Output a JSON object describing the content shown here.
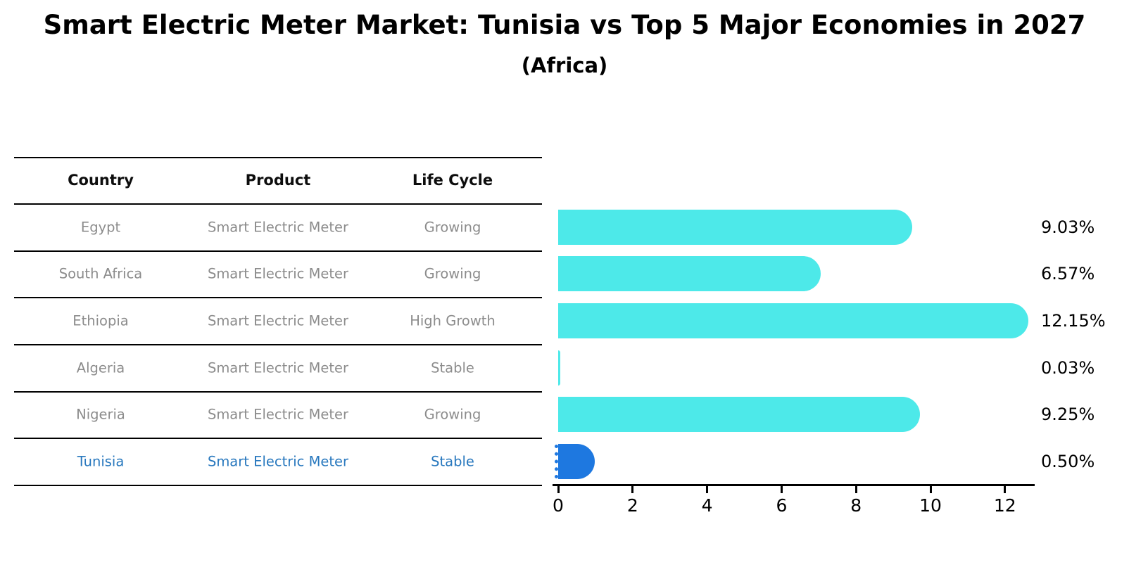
{
  "title": "Smart Electric Meter Market: Tunisia vs Top 5 Major Economies in 2027",
  "subtitle": "(Africa)",
  "table": {
    "columns": [
      "Country",
      "Product",
      "Life Cycle"
    ],
    "rows": [
      {
        "country": "Egypt",
        "product": "Smart Electric Meter",
        "life_cycle": "Growing",
        "highlighted": false
      },
      {
        "country": "South Africa",
        "product": "Smart Electric Meter",
        "life_cycle": "Growing",
        "highlighted": false
      },
      {
        "country": "Ethiopia",
        "product": "Smart Electric Meter",
        "life_cycle": "High Growth",
        "highlighted": false
      },
      {
        "country": "Algeria",
        "product": "Smart Electric Meter",
        "life_cycle": "Stable",
        "highlighted": false
      },
      {
        "country": "Nigeria",
        "product": "Smart Electric Meter",
        "life_cycle": "Growing",
        "highlighted": false
      },
      {
        "country": "Tunisia",
        "product": "Smart Electric Meter",
        "life_cycle": "Stable",
        "highlighted": true
      }
    ]
  },
  "chart_data": {
    "type": "bar",
    "orientation": "horizontal",
    "title": "Smart Electric Meter Market: Tunisia vs Top 5 Major Economies in 2027",
    "subtitle": "(Africa)",
    "categories": [
      "Egypt",
      "South Africa",
      "Ethiopia",
      "Algeria",
      "Nigeria",
      "Tunisia"
    ],
    "values": [
      9.03,
      6.57,
      12.15,
      0.03,
      9.25,
      0.5
    ],
    "value_labels": [
      "9.03%",
      "6.57%",
      "12.15%",
      "0.03%",
      "9.25%",
      "0.50%"
    ],
    "x_ticks": [
      0,
      2,
      4,
      6,
      8,
      10,
      12
    ],
    "xlim": [
      0,
      12.8
    ],
    "xlabel": "",
    "ylabel": "",
    "grid": false,
    "legend": "none",
    "highlight_category": "Tunisia",
    "bar_style": "rounded-right-cap, highlighted bar has dotted edge"
  },
  "colors": {
    "bar_default": "#4DE9E9",
    "bar_highlight": "#1E78E0",
    "row_text": "#8C8C8C",
    "highlight_text": "#2878BE",
    "header_text": "#0D0D0D",
    "axis": "#000000",
    "background": "#FFFFFF"
  }
}
